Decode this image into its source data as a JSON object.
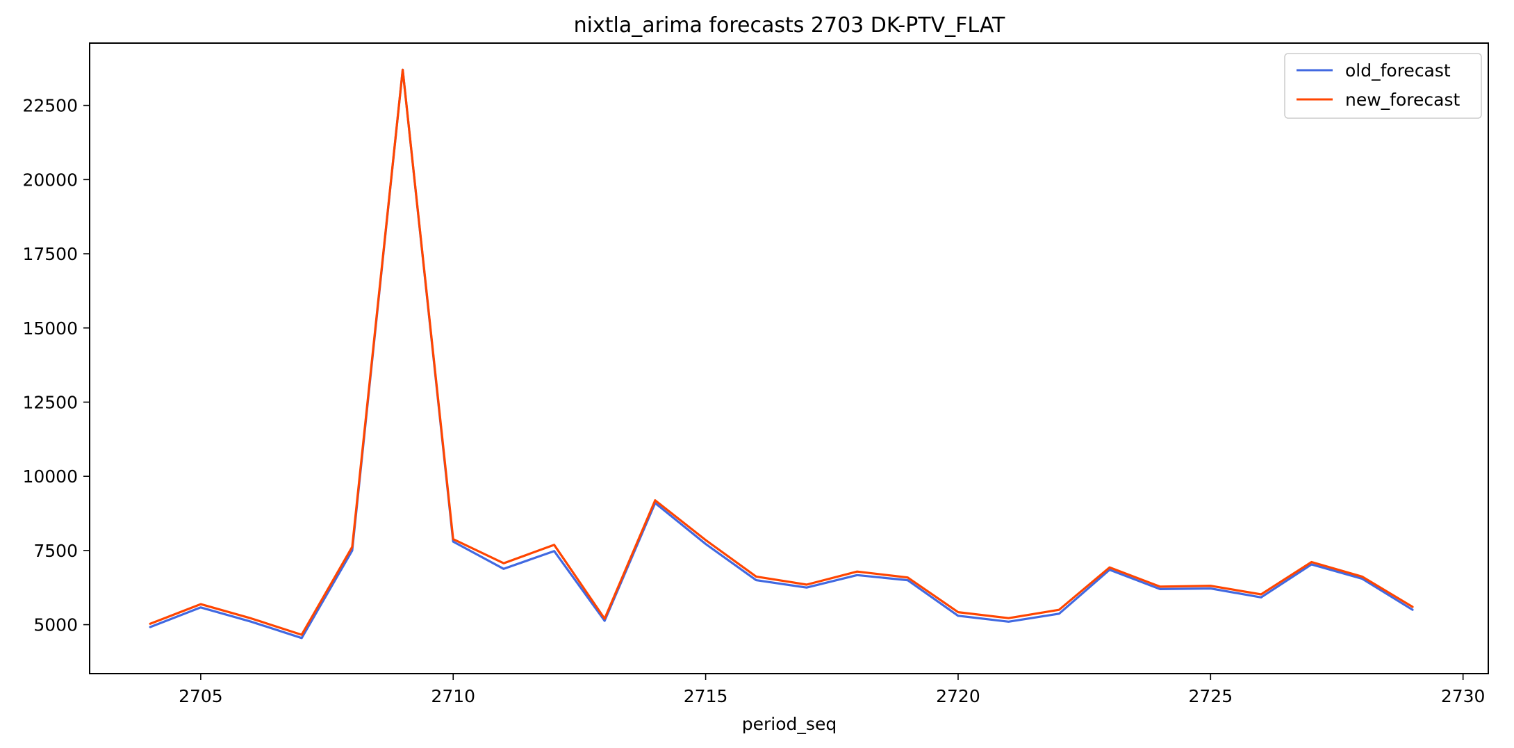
{
  "chart_data": {
    "type": "line",
    "title": "nixtla_arima forecasts 2703 DK-PTV_FLAT",
    "xlabel": "period_seq",
    "ylabel": "",
    "xlim": [
      2702.8,
      2730.5
    ],
    "ylim": [
      3350,
      24600
    ],
    "xticks": [
      2705,
      2710,
      2715,
      2720,
      2725,
      2730
    ],
    "yticks": [
      5000,
      7500,
      10000,
      12500,
      15000,
      17500,
      20000,
      22500
    ],
    "legend_position": "top-right",
    "grid": false,
    "x": [
      2704,
      2705,
      2706,
      2707,
      2708,
      2709,
      2710,
      2711,
      2712,
      2713,
      2714,
      2715,
      2716,
      2717,
      2718,
      2719,
      2720,
      2721,
      2722,
      2723,
      2724,
      2725,
      2726,
      2727,
      2728,
      2729
    ],
    "series": [
      {
        "name": "old_forecast",
        "color": "#4169e1",
        "values": [
          4920,
          5580,
          5100,
          4550,
          7500,
          23700,
          7800,
          6880,
          7480,
          5130,
          9100,
          7720,
          6500,
          6250,
          6670,
          6500,
          5300,
          5100,
          5370,
          6850,
          6200,
          6220,
          5920,
          7030,
          6550,
          5500
        ]
      },
      {
        "name": "new_forecast",
        "color": "#ff4500",
        "values": [
          5030,
          5690,
          5210,
          4660,
          7620,
          23700,
          7880,
          7070,
          7690,
          5200,
          9190,
          7850,
          6620,
          6350,
          6790,
          6590,
          5420,
          5220,
          5500,
          6930,
          6280,
          6310,
          6020,
          7110,
          6620,
          5600
        ]
      }
    ]
  }
}
